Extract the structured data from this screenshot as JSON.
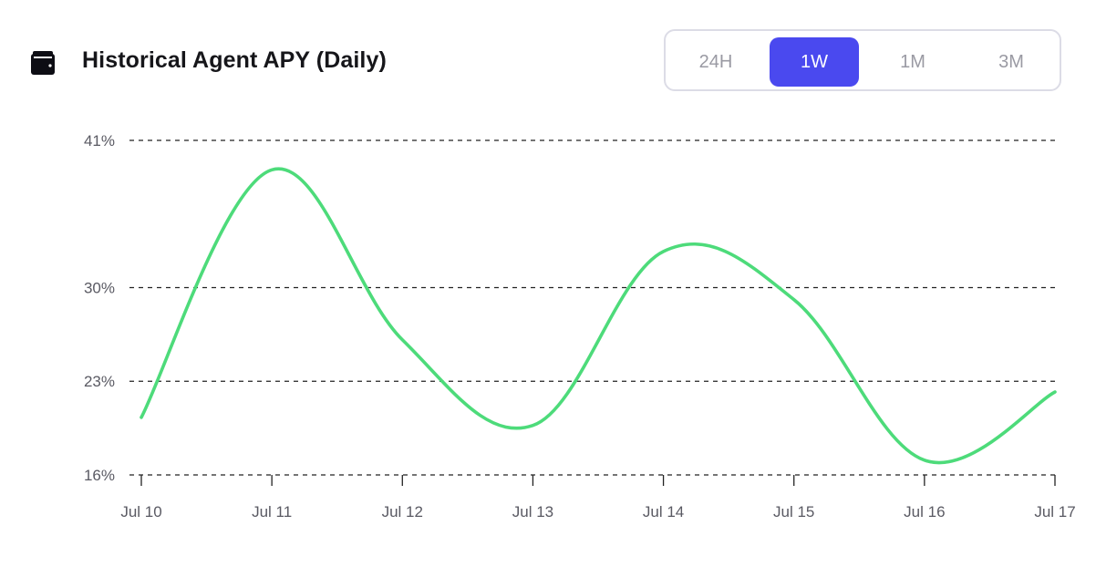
{
  "header": {
    "title": "Historical Agent APY (Daily)",
    "icon": "wallet-icon"
  },
  "range_selector": {
    "options": [
      "24H",
      "1W",
      "1M",
      "3M"
    ],
    "selected": "1W"
  },
  "colors": {
    "line": "#4ddb7a",
    "accent": "#4a49ef",
    "grid": "#222222",
    "axis_text": "#5a5a63"
  },
  "chart_data": {
    "type": "line",
    "title": "Historical Agent APY (Daily)",
    "xlabel": "",
    "ylabel": "",
    "x": [
      "Jul 10",
      "Jul 11",
      "Jul 12",
      "Jul 13",
      "Jul 14",
      "Jul 15",
      "Jul 16",
      "Jul 17"
    ],
    "series": [
      {
        "values": [
          20.3,
          38.8,
          26.1,
          19.7,
          32.7,
          29.1,
          17.1,
          22.2
        ]
      }
    ],
    "yticks": [
      16,
      23,
      30,
      41
    ],
    "ytick_labels": [
      "16%",
      "23%",
      "30%",
      "41%"
    ],
    "ylim": [
      16,
      41
    ],
    "grid": true,
    "grid_style": "dashed",
    "legend": "none"
  }
}
